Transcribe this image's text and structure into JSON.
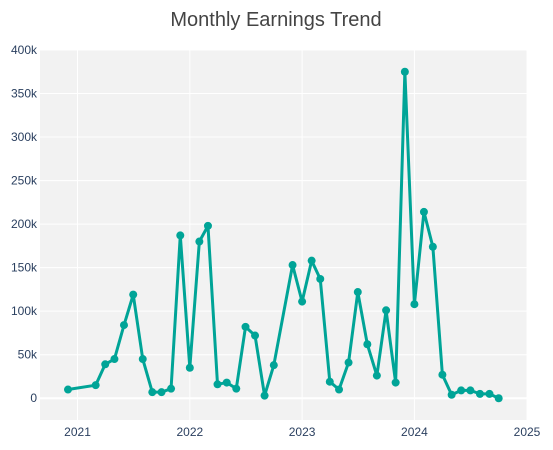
{
  "chart_data": {
    "type": "line",
    "title": "Monthly Earnings Trend",
    "xlabel": "",
    "ylabel": "",
    "grid": true,
    "xlim": [
      "2020-09-01",
      "2025-01-01"
    ],
    "ylim": [
      -25000,
      400000
    ],
    "y_ticks": [
      0,
      50000,
      100000,
      150000,
      200000,
      250000,
      300000,
      350000,
      400000
    ],
    "y_tick_labels": [
      "0",
      "50k",
      "100k",
      "150k",
      "200k",
      "250k",
      "300k",
      "350k",
      "400k"
    ],
    "x_ticks": [
      "2021-01-01",
      "2022-01-01",
      "2023-01-01",
      "2024-01-01",
      "2025-01-01"
    ],
    "x_tick_labels": [
      "2021",
      "2022",
      "2023",
      "2024",
      "2025"
    ],
    "line_color": "#00a497",
    "plot_bg": "#f2f2f2",
    "series": [
      {
        "name": "",
        "x": [
          "2020-12-01",
          "2021-03-01",
          "2021-04-01",
          "2021-05-01",
          "2021-06-01",
          "2021-07-01",
          "2021-08-01",
          "2021-09-01",
          "2021-10-01",
          "2021-11-01",
          "2021-12-01",
          "2022-01-01",
          "2022-02-01",
          "2022-03-01",
          "2022-04-01",
          "2022-05-01",
          "2022-06-01",
          "2022-07-01",
          "2022-08-01",
          "2022-09-01",
          "2022-10-01",
          "2022-12-01",
          "2023-01-01",
          "2023-02-01",
          "2023-03-01",
          "2023-04-01",
          "2023-05-01",
          "2023-06-01",
          "2023-07-01",
          "2023-08-01",
          "2023-09-01",
          "2023-10-01",
          "2023-11-01",
          "2023-12-01",
          "2024-01-01",
          "2024-02-01",
          "2024-03-01",
          "2024-04-01",
          "2024-05-01",
          "2024-06-01",
          "2024-07-01",
          "2024-08-01",
          "2024-09-01",
          "2024-10-01"
        ],
        "y": [
          10000,
          15000,
          39000,
          45000,
          84000,
          119000,
          45000,
          7000,
          7000,
          11000,
          187000,
          35000,
          180000,
          198000,
          16000,
          18000,
          11000,
          82000,
          72000,
          3000,
          38000,
          153000,
          111000,
          158000,
          137000,
          19000,
          10000,
          41000,
          122000,
          62000,
          26000,
          101000,
          18000,
          375000,
          108000,
          214000,
          174000,
          27000,
          4000,
          9000,
          9000,
          5000,
          5000,
          0
        ]
      }
    ]
  }
}
